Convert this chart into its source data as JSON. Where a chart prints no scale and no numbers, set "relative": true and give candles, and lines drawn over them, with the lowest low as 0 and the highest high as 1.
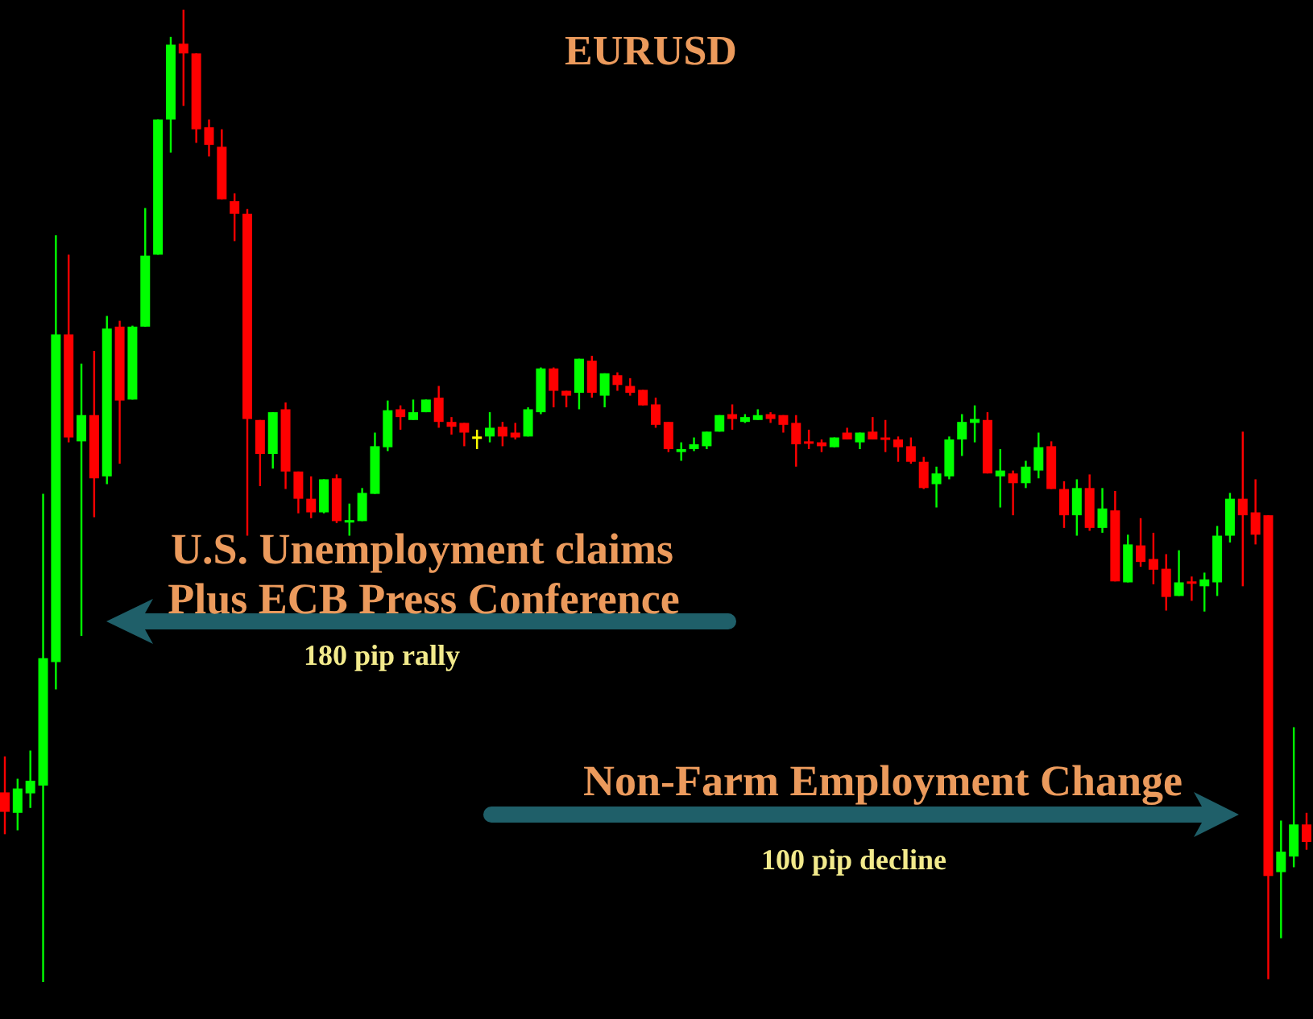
{
  "chart_data": {
    "type": "candlestick",
    "title": "EURUSD",
    "relative": true,
    "categories": [
      null,
      null,
      null,
      null,
      null,
      null,
      null,
      null,
      null,
      null,
      null,
      null,
      null,
      null,
      null,
      null,
      null,
      null,
      null,
      null,
      null,
      null,
      null,
      null,
      null,
      null,
      null,
      null,
      null,
      null,
      null,
      null,
      null,
      null,
      null,
      null,
      null,
      null,
      null,
      null,
      null,
      null,
      null,
      null,
      null,
      null,
      null,
      null,
      null,
      null,
      null,
      null,
      null,
      null,
      null,
      null,
      null,
      null,
      null,
      null,
      null,
      null,
      null,
      null,
      null,
      null,
      null,
      null,
      null,
      null,
      null,
      null,
      null,
      null,
      null,
      null,
      null,
      null,
      null,
      null,
      null,
      null,
      null,
      null,
      null,
      null,
      null,
      null,
      null,
      null,
      null,
      null,
      null,
      null,
      null,
      null,
      null,
      null,
      null,
      null,
      null,
      null,
      null
    ],
    "ohlc": [
      [
        0.195,
        0.232,
        0.152,
        0.175
      ],
      [
        0.174,
        0.209,
        0.156,
        0.199
      ],
      [
        0.194,
        0.238,
        0.179,
        0.207
      ],
      [
        0.202,
        0.502,
        0,
        0.333
      ],
      [
        0.329,
        0.768,
        0.301,
        0.666
      ],
      [
        0.666,
        0.748,
        0.555,
        0.56
      ],
      [
        0.556,
        0.636,
        0.356,
        0.583
      ],
      [
        0.583,
        0.649,
        0.478,
        0.518
      ],
      [
        0.52,
        0.685,
        0.512,
        0.672
      ],
      [
        0.674,
        0.68,
        0.533,
        0.598
      ],
      [
        0.599,
        0.675,
        0.599,
        0.674
      ],
      [
        0.674,
        0.796,
        0.674,
        0.747
      ],
      [
        0.748,
        0.887,
        0.748,
        0.887
      ],
      [
        0.887,
        0.972,
        0.853,
        0.964
      ],
      [
        0.965,
        1,
        0.901,
        0.955
      ],
      [
        0.955,
        0.955,
        0.863,
        0.877
      ],
      [
        0.879,
        0.887,
        0.849,
        0.861
      ],
      [
        0.859,
        0.877,
        0.805,
        0.805
      ],
      [
        0.803,
        0.811,
        0.762,
        0.79
      ],
      [
        0.79,
        0.795,
        0.459,
        0.579
      ],
      [
        0.578,
        0.578,
        0.51,
        0.543
      ],
      [
        0.543,
        0.586,
        0.528,
        0.586
      ],
      [
        0.589,
        0.596,
        0.507,
        0.525
      ],
      [
        0.525,
        0.525,
        0.482,
        0.497
      ],
      [
        0.497,
        0.52,
        0.477,
        0.483
      ],
      [
        0.483,
        0.517,
        0.482,
        0.517
      ],
      [
        0.518,
        0.522,
        0.472,
        0.474
      ],
      [
        0.474,
        0.492,
        0.459,
        0.475
      ],
      [
        0.474,
        0.508,
        0.474,
        0.503
      ],
      [
        0.502,
        0.565,
        0.502,
        0.551
      ],
      [
        0.55,
        0.598,
        0.546,
        0.588
      ],
      [
        0.589,
        0.593,
        0.568,
        0.581
      ],
      [
        0.578,
        0.599,
        0.578,
        0.586
      ],
      [
        0.586,
        0.599,
        0.586,
        0.599
      ],
      [
        0.601,
        0.613,
        0.57,
        0.576
      ],
      [
        0.576,
        0.581,
        0.563,
        0.571
      ],
      [
        0.575,
        0.575,
        0.551,
        0.565
      ],
      [
        0.561,
        0.568,
        0.548,
        0.561
      ],
      [
        0.561,
        0.586,
        0.555,
        0.57
      ],
      [
        0.571,
        0.576,
        0.551,
        0.561
      ],
      [
        0.565,
        0.575,
        0.558,
        0.56
      ],
      [
        0.561,
        0.591,
        0.561,
        0.589
      ],
      [
        0.586,
        0.632,
        0.584,
        0.631
      ],
      [
        0.631,
        0.632,
        0.591,
        0.608
      ],
      [
        0.608,
        0.608,
        0.591,
        0.603
      ],
      [
        0.606,
        0.641,
        0.589,
        0.641
      ],
      [
        0.639,
        0.644,
        0.601,
        0.606
      ],
      [
        0.603,
        0.626,
        0.591,
        0.626
      ],
      [
        0.624,
        0.627,
        0.608,
        0.614
      ],
      [
        0.613,
        0.621,
        0.603,
        0.606
      ],
      [
        0.609,
        0.609,
        0.593,
        0.593
      ],
      [
        0.594,
        0.601,
        0.57,
        0.573
      ],
      [
        0.576,
        0.576,
        0.545,
        0.548
      ],
      [
        0.545,
        0.555,
        0.536,
        0.548
      ],
      [
        0.548,
        0.56,
        0.546,
        0.553
      ],
      [
        0.551,
        0.566,
        0.548,
        0.566
      ],
      [
        0.566,
        0.583,
        0.566,
        0.583
      ],
      [
        0.584,
        0.594,
        0.568,
        0.579
      ],
      [
        0.576,
        0.584,
        0.575,
        0.581
      ],
      [
        0.578,
        0.589,
        0.578,
        0.583
      ],
      [
        0.584,
        0.586,
        0.575,
        0.579
      ],
      [
        0.583,
        0.583,
        0.565,
        0.573
      ],
      [
        0.575,
        0.583,
        0.53,
        0.553
      ],
      [
        0.556,
        0.568,
        0.548,
        0.555
      ],
      [
        0.555,
        0.558,
        0.545,
        0.551
      ],
      [
        0.55,
        0.56,
        0.55,
        0.56
      ],
      [
        0.565,
        0.57,
        0.558,
        0.558
      ],
      [
        0.555,
        0.565,
        0.548,
        0.565
      ],
      [
        0.566,
        0.581,
        0.558,
        0.558
      ],
      [
        0.56,
        0.578,
        0.545,
        0.558
      ],
      [
        0.558,
        0.561,
        0.535,
        0.55
      ],
      [
        0.551,
        0.56,
        0.533,
        0.535
      ],
      [
        0.535,
        0.54,
        0.507,
        0.508
      ],
      [
        0.512,
        0.53,
        0.488,
        0.523
      ],
      [
        0.52,
        0.561,
        0.517,
        0.558
      ],
      [
        0.558,
        0.584,
        0.541,
        0.576
      ],
      [
        0.575,
        0.593,
        0.555,
        0.579
      ],
      [
        0.578,
        0.586,
        0.523,
        0.523
      ],
      [
        0.52,
        0.548,
        0.488,
        0.526
      ],
      [
        0.523,
        0.526,
        0.48,
        0.513
      ],
      [
        0.513,
        0.536,
        0.508,
        0.53
      ],
      [
        0.526,
        0.565,
        0.518,
        0.55
      ],
      [
        0.551,
        0.556,
        0.507,
        0.507
      ],
      [
        0.507,
        0.515,
        0.467,
        0.48
      ],
      [
        0.48,
        0.517,
        0.459,
        0.508
      ],
      [
        0.508,
        0.522,
        0.464,
        0.467
      ],
      [
        0.467,
        0.508,
        0.462,
        0.487
      ],
      [
        0.485,
        0.505,
        0.412,
        0.412
      ],
      [
        0.411,
        0.46,
        0.411,
        0.45
      ],
      [
        0.449,
        0.477,
        0.427,
        0.432
      ],
      [
        0.435,
        0.462,
        0.409,
        0.424
      ],
      [
        0.425,
        0.44,
        0.382,
        0.396
      ],
      [
        0.397,
        0.444,
        0.397,
        0.411
      ],
      [
        0.412,
        0.417,
        0.392,
        0.411
      ],
      [
        0.407,
        0.421,
        0.381,
        0.414
      ],
      [
        0.411,
        0.469,
        0.397,
        0.459
      ],
      [
        0.459,
        0.503,
        0.452,
        0.497
      ],
      [
        0.497,
        0.566,
        0.407,
        0.48
      ],
      [
        0.483,
        0.517,
        0.45,
        0.46
      ],
      [
        0.48,
        0.48,
        0.003,
        0.109
      ],
      [
        0.113,
        0.166,
        0.045,
        0.134
      ],
      [
        0.129,
        0.262,
        0.118,
        0.162
      ],
      [
        0.162,
        0.174,
        0.136,
        0.144
      ]
    ],
    "colors": [
      "#ff0000",
      "#00ff00",
      "#00ff00",
      "#00ff00",
      "#00ff00",
      "#ff0000",
      "#00ff00",
      "#ff0000",
      "#00ff00",
      "#ff0000",
      "#00ff00",
      "#00ff00",
      "#00ff00",
      "#00ff00",
      "#ff0000",
      "#ff0000",
      "#ff0000",
      "#ff0000",
      "#ff0000",
      "#ff0000",
      "#ff0000",
      "#00ff00",
      "#ff0000",
      "#ff0000",
      "#ff0000",
      "#00ff00",
      "#ff0000",
      "#00ff00",
      "#00ff00",
      "#00ff00",
      "#00ff00",
      "#ff0000",
      "#00ff00",
      "#00ff00",
      "#ff0000",
      "#ff0000",
      "#ff0000",
      "#ffff00",
      "#00ff00",
      "#ff0000",
      "#ff0000",
      "#00ff00",
      "#00ff00",
      "#ff0000",
      "#ff0000",
      "#00ff00",
      "#ff0000",
      "#00ff00",
      "#ff0000",
      "#ff0000",
      "#ff0000",
      "#ff0000",
      "#ff0000",
      "#00ff00",
      "#00ff00",
      "#00ff00",
      "#00ff00",
      "#ff0000",
      "#00ff00",
      "#00ff00",
      "#ff0000",
      "#ff0000",
      "#ff0000",
      "#ff0000",
      "#ff0000",
      "#00ff00",
      "#ff0000",
      "#00ff00",
      "#ff0000",
      "#ff0000",
      "#ff0000",
      "#ff0000",
      "#ff0000",
      "#00ff00",
      "#00ff00",
      "#00ff00",
      "#00ff00",
      "#ff0000",
      "#00ff00",
      "#ff0000",
      "#00ff00",
      "#00ff00",
      "#ff0000",
      "#ff0000",
      "#00ff00",
      "#ff0000",
      "#00ff00",
      "#ff0000",
      "#00ff00",
      "#ff0000",
      "#ff0000",
      "#ff0000",
      "#00ff00",
      "#ff0000",
      "#00ff00",
      "#00ff00",
      "#00ff00",
      "#ff0000",
      "#ff0000",
      "#ff0000",
      "#00ff00",
      "#00ff00",
      "#ff0000"
    ],
    "annotations": [
      "U.S. Unemployment claims",
      "Plus ECB Press Conference",
      "180 pip rally",
      "Non-Farm Employment Change",
      "100 pip decline"
    ]
  }
}
